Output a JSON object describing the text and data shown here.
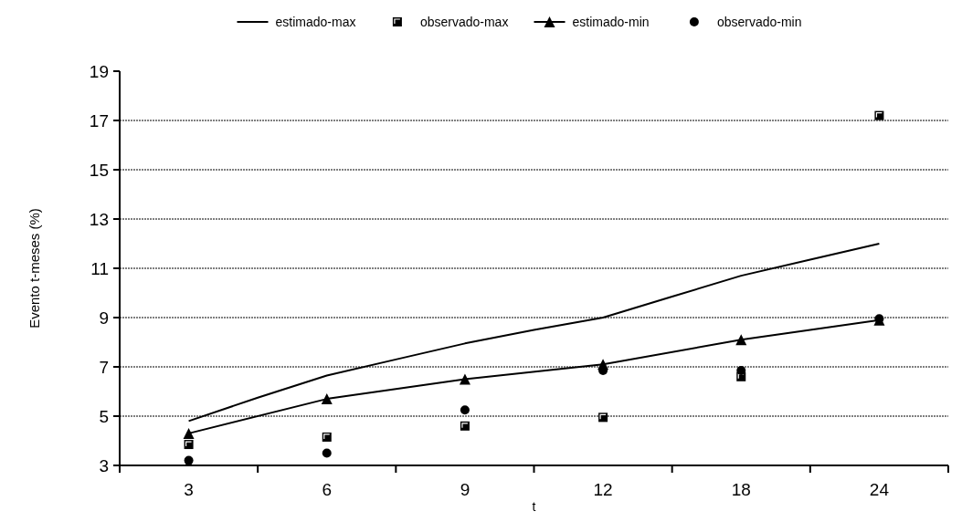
{
  "chart_data": {
    "type": "line",
    "xlabel": "t",
    "ylabel": "Evento t-meses (%)",
    "categories": [
      "3",
      null,
      "6",
      null,
      "9",
      null,
      "12",
      null,
      "18",
      null,
      "24"
    ],
    "series": [
      {
        "name": "estimado-max",
        "color": "#000000",
        "marker": "none",
        "values": [
          4.8,
          5.75,
          6.65,
          7.3,
          7.95,
          8.5,
          9.0,
          9.85,
          10.7,
          11.35,
          12.0
        ]
      },
      {
        "name": "observado-max",
        "type": "scatter",
        "color": "#000000",
        "marker": "square",
        "x": [
          "3",
          "6",
          "9",
          "12",
          "18",
          "24"
        ],
        "values": [
          3.85,
          4.15,
          4.6,
          4.95,
          6.6,
          17.2
        ]
      },
      {
        "name": "estimado-min",
        "color": "#000000",
        "marker": "triangle",
        "x": [
          "3",
          "6",
          "9",
          "12",
          "18",
          "24"
        ],
        "values": [
          4.3,
          5.7,
          6.5,
          7.1,
          8.1,
          8.9
        ]
      },
      {
        "name": "observado-min",
        "type": "scatter",
        "color": "#000000",
        "marker": "circle",
        "x": [
          "3",
          "6",
          "9",
          "12",
          "18",
          "24"
        ],
        "values": [
          3.2,
          3.5,
          5.25,
          6.85,
          6.85,
          8.95
        ]
      }
    ],
    "ylim": [
      3,
      19
    ],
    "yticks": [
      3,
      5,
      7,
      9,
      11,
      13,
      15,
      17,
      19
    ],
    "grid": "y",
    "legend": "top"
  }
}
